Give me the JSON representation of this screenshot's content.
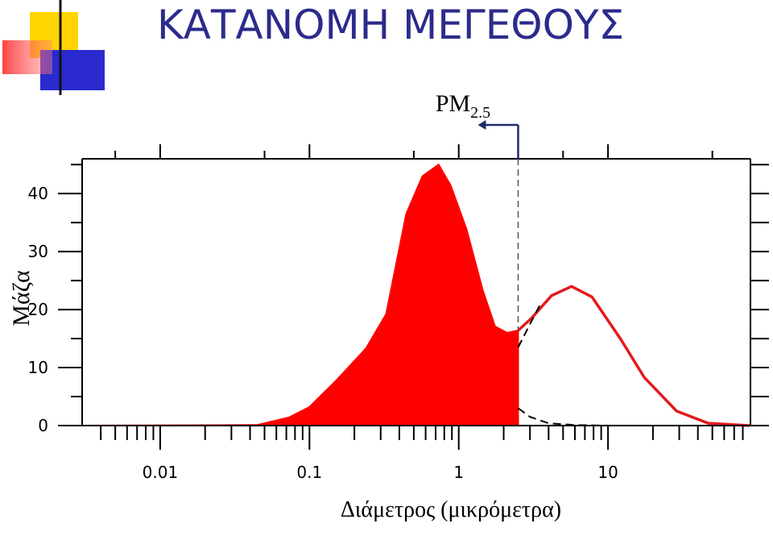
{
  "chart_data": {
    "type": "line",
    "title": "ΚΑΤΑΝΟΜΗ ΜΕΓΕΘΟΥΣ",
    "x_label": "Διάμετρος (μικρόμετρα)",
    "y_label": "Μάζα",
    "annotation": {
      "text": "PM",
      "subscript": "2.5"
    },
    "xscale": "log",
    "xlim": [
      0.003,
      90
    ],
    "xticks": [
      0.01,
      0.1,
      1,
      10
    ],
    "ylim": [
      0,
      46
    ],
    "yticks": [
      0,
      10,
      20,
      30,
      40
    ],
    "series": [
      {
        "color": "#ff0000",
        "fill": true,
        "x": [
          0.003,
          0.0445,
          0.073,
          0.1,
          0.154,
          0.239,
          0.326,
          0.445,
          0.571,
          0.733,
          0.883,
          1.13,
          1.45,
          1.75,
          2.11,
          2.5
        ],
        "values": [
          0,
          0.1,
          1.4,
          3.2,
          8,
          13.3,
          19.2,
          36.5,
          43,
          45,
          41.4,
          33.8,
          23.3,
          17.1,
          16,
          16.4
        ]
      },
      {
        "color": "#e31a1c",
        "fill": false,
        "x": [
          2.5,
          3.07,
          4.18,
          5.7,
          7.8,
          12.1,
          17.5,
          28.8,
          47,
          88.6
        ],
        "values": [
          16.4,
          18.5,
          22.4,
          24,
          22.2,
          15,
          8.3,
          2.5,
          0.4,
          0
        ]
      },
      {
        "color": "#000000",
        "fill": false,
        "dashed": true,
        "x": [
          2.5,
          3,
          4,
          6,
          10,
          20,
          90
        ],
        "values": [
          3,
          1.5,
          0.4,
          0.1,
          0,
          0,
          0
        ]
      },
      {
        "color": "#000000",
        "fill": false,
        "dashed": true,
        "x": [
          2.5,
          3,
          3.5
        ],
        "values": [
          13.5,
          17.5,
          20.8
        ]
      }
    ]
  }
}
